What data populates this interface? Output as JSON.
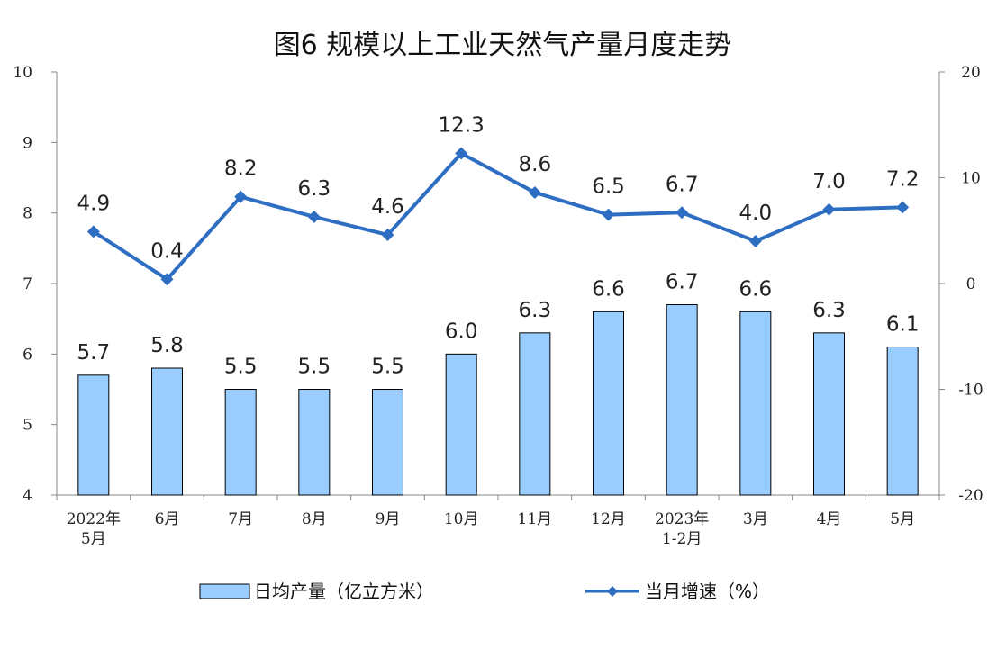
{
  "chart_data": {
    "type": "bar",
    "title": "图6  规模以上工业天然气产量月度走势",
    "categories": [
      [
        "2022年",
        "5月"
      ],
      [
        "6月"
      ],
      [
        "7月"
      ],
      [
        "8月"
      ],
      [
        "9月"
      ],
      [
        "10月"
      ],
      [
        "11月"
      ],
      [
        "12月"
      ],
      [
        "2023年",
        "1-2月"
      ],
      [
        "3月"
      ],
      [
        "4月"
      ],
      [
        "5月"
      ]
    ],
    "series": [
      {
        "name": "日均产量（亿立方米）",
        "type": "bar",
        "axis": "left",
        "color": "#99CCFF",
        "values": [
          5.7,
          5.8,
          5.5,
          5.5,
          5.5,
          6.0,
          6.3,
          6.6,
          6.7,
          6.6,
          6.3,
          6.1
        ],
        "labels": [
          "5.7",
          "5.8",
          "5.5",
          "5.5",
          "5.5",
          "6.0",
          "6.3",
          "6.6",
          "6.7",
          "6.6",
          "6.3",
          "6.1"
        ]
      },
      {
        "name": "当月增速（%）",
        "type": "line",
        "axis": "right",
        "color": "#2E6EC2",
        "values": [
          4.9,
          0.4,
          8.2,
          6.3,
          4.6,
          12.3,
          8.6,
          6.5,
          6.7,
          4.0,
          7.0,
          7.2
        ],
        "labels": [
          "4.9",
          "0.4",
          "8.2",
          "6.3",
          "4.6",
          "12.3",
          "8.6",
          "6.5",
          "6.7",
          "4.0",
          "7.0",
          "7.2"
        ]
      }
    ],
    "y_left": {
      "ylim": [
        4,
        10
      ],
      "ticks": [
        "4",
        "5",
        "6",
        "7",
        "8",
        "9",
        "10"
      ]
    },
    "y_right": {
      "ylim": [
        -20,
        20
      ],
      "ticks": [
        "-20",
        "-10",
        "0",
        "10",
        "20"
      ]
    },
    "grid": false,
    "legend_position": "bottom"
  }
}
